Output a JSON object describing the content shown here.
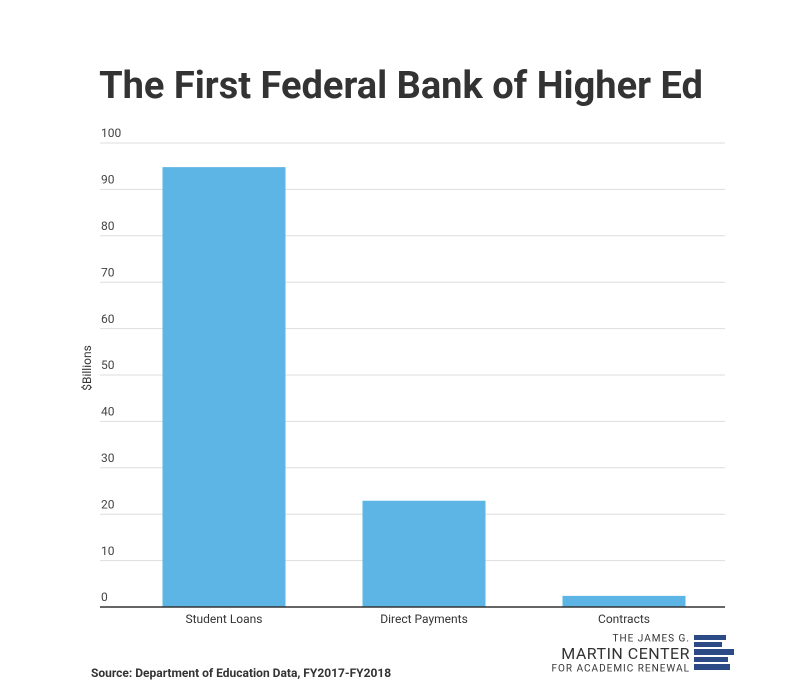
{
  "chart_data": {
    "type": "bar",
    "title": "The First Federal Bank of Higher Ed",
    "y_label": "$Billions",
    "categories": [
      "Student Loans",
      "Direct Payments",
      "Contracts"
    ],
    "values": [
      94.8,
      22.9,
      2.4
    ],
    "color": "#5db5e5",
    "ylim": [
      0,
      100
    ],
    "yticks": [
      0,
      10,
      20,
      30,
      40,
      50,
      60,
      70,
      80,
      90,
      100
    ],
    "grid": true,
    "source": "Source: Department of Education Data, FY2017-FY2018",
    "logo": [
      "THE JAMES G.",
      "MARTIN CENTER",
      "FOR ACADEMIC RENEWAL"
    ]
  }
}
